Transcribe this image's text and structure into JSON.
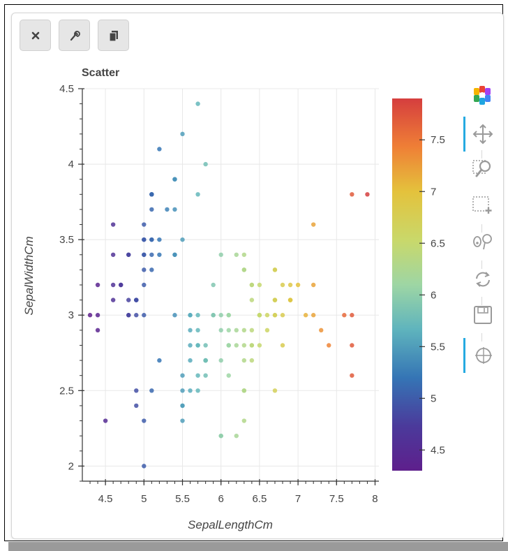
{
  "toolbar": {
    "buttons": [
      {
        "name": "close",
        "icon": "close-icon"
      },
      {
        "name": "settings",
        "icon": "wrench-icon"
      },
      {
        "name": "copy",
        "icon": "copy-icon"
      }
    ]
  },
  "side_tools": [
    {
      "name": "bokeh-logo",
      "icon": "bokeh-logo-icon"
    },
    {
      "name": "pan",
      "icon": "pan-icon",
      "active": true
    },
    {
      "name": "wheel-zoom",
      "icon": "wheel-zoom-icon"
    },
    {
      "name": "box-zoom",
      "icon": "box-zoom-icon"
    },
    {
      "name": "lasso",
      "icon": "lasso-icon"
    },
    {
      "name": "reset",
      "icon": "reset-icon"
    },
    {
      "name": "save",
      "icon": "save-icon"
    },
    {
      "name": "hover",
      "icon": "crosshair-icon",
      "active": true
    }
  ],
  "chart_data": {
    "type": "scatter",
    "title": "Scatter",
    "xlabel": "SepalLengthCm",
    "ylabel": "SepalWidthCm",
    "xlim": [
      4.2,
      8.05
    ],
    "ylim": [
      1.9,
      4.5
    ],
    "xticks": [
      4.5,
      5,
      5.5,
      6,
      6.5,
      7,
      7.5,
      8
    ],
    "yticks": [
      2,
      2.5,
      3,
      3.5,
      4,
      4.5
    ],
    "grid": true,
    "colormap": "Spectral",
    "colorbar": {
      "range": [
        4.3,
        7.9
      ],
      "ticks": [
        4.5,
        5,
        5.5,
        6,
        6.5,
        7,
        7.5
      ]
    },
    "color_by": "x",
    "points": [
      [
        5.1,
        3.5
      ],
      [
        4.9,
        3.0
      ],
      [
        4.7,
        3.2
      ],
      [
        4.6,
        3.1
      ],
      [
        5.0,
        3.6
      ],
      [
        5.4,
        3.9
      ],
      [
        4.6,
        3.4
      ],
      [
        5.0,
        3.4
      ],
      [
        4.4,
        2.9
      ],
      [
        4.9,
        3.1
      ],
      [
        5.4,
        3.7
      ],
      [
        4.8,
        3.4
      ],
      [
        4.8,
        3.0
      ],
      [
        4.3,
        3.0
      ],
      [
        5.8,
        4.0
      ],
      [
        5.7,
        4.4
      ],
      [
        5.4,
        3.9
      ],
      [
        5.1,
        3.5
      ],
      [
        5.7,
        3.8
      ],
      [
        5.1,
        3.8
      ],
      [
        5.4,
        3.4
      ],
      [
        5.1,
        3.7
      ],
      [
        4.6,
        3.6
      ],
      [
        5.1,
        3.3
      ],
      [
        4.8,
        3.4
      ],
      [
        5.0,
        3.0
      ],
      [
        5.0,
        3.4
      ],
      [
        5.2,
        3.5
      ],
      [
        5.2,
        3.4
      ],
      [
        4.7,
        3.2
      ],
      [
        4.8,
        3.1
      ],
      [
        5.4,
        3.4
      ],
      [
        5.2,
        4.1
      ],
      [
        5.5,
        4.2
      ],
      [
        4.9,
        3.1
      ],
      [
        5.0,
        3.2
      ],
      [
        5.5,
        3.5
      ],
      [
        4.9,
        3.1
      ],
      [
        4.4,
        3.0
      ],
      [
        5.1,
        3.4
      ],
      [
        5.0,
        3.5
      ],
      [
        4.5,
        2.3
      ],
      [
        4.4,
        3.2
      ],
      [
        5.0,
        3.5
      ],
      [
        5.1,
        3.8
      ],
      [
        4.8,
        3.0
      ],
      [
        5.1,
        3.8
      ],
      [
        4.6,
        3.2
      ],
      [
        5.3,
        3.7
      ],
      [
        5.0,
        3.3
      ],
      [
        7.0,
        3.2
      ],
      [
        6.4,
        3.2
      ],
      [
        6.9,
        3.1
      ],
      [
        5.5,
        2.3
      ],
      [
        6.5,
        2.8
      ],
      [
        5.7,
        2.8
      ],
      [
        6.3,
        3.3
      ],
      [
        4.9,
        2.4
      ],
      [
        6.6,
        2.9
      ],
      [
        5.2,
        2.7
      ],
      [
        5.0,
        2.0
      ],
      [
        5.9,
        3.0
      ],
      [
        6.0,
        2.2
      ],
      [
        6.1,
        2.9
      ],
      [
        5.6,
        2.9
      ],
      [
        6.7,
        3.1
      ],
      [
        5.6,
        3.0
      ],
      [
        5.8,
        2.7
      ],
      [
        6.2,
        2.2
      ],
      [
        5.6,
        2.5
      ],
      [
        5.9,
        3.2
      ],
      [
        6.1,
        2.8
      ],
      [
        6.3,
        2.5
      ],
      [
        6.1,
        2.8
      ],
      [
        6.4,
        2.9
      ],
      [
        6.6,
        3.0
      ],
      [
        6.8,
        2.8
      ],
      [
        6.7,
        3.0
      ],
      [
        6.0,
        2.9
      ],
      [
        5.7,
        2.6
      ],
      [
        5.5,
        2.4
      ],
      [
        5.5,
        2.4
      ],
      [
        5.8,
        2.7
      ],
      [
        6.0,
        2.7
      ],
      [
        5.4,
        3.0
      ],
      [
        6.0,
        3.4
      ],
      [
        6.7,
        3.1
      ],
      [
        6.3,
        2.3
      ],
      [
        5.6,
        3.0
      ],
      [
        5.5,
        2.5
      ],
      [
        5.5,
        2.6
      ],
      [
        6.1,
        3.0
      ],
      [
        5.8,
        2.6
      ],
      [
        5.0,
        2.3
      ],
      [
        5.6,
        2.7
      ],
      [
        5.7,
        3.0
      ],
      [
        5.7,
        2.9
      ],
      [
        6.2,
        2.9
      ],
      [
        5.1,
        2.5
      ],
      [
        5.7,
        2.8
      ],
      [
        6.3,
        3.3
      ],
      [
        5.8,
        2.7
      ],
      [
        7.1,
        3.0
      ],
      [
        6.3,
        2.9
      ],
      [
        6.5,
        3.0
      ],
      [
        7.6,
        3.0
      ],
      [
        4.9,
        2.5
      ],
      [
        7.3,
        2.9
      ],
      [
        6.7,
        2.5
      ],
      [
        7.2,
        3.6
      ],
      [
        6.5,
        3.2
      ],
      [
        6.4,
        2.7
      ],
      [
        6.8,
        3.0
      ],
      [
        5.7,
        2.5
      ],
      [
        5.8,
        2.8
      ],
      [
        6.4,
        3.2
      ],
      [
        6.5,
        3.0
      ],
      [
        7.7,
        3.8
      ],
      [
        7.7,
        2.6
      ],
      [
        6.0,
        2.2
      ],
      [
        6.9,
        3.2
      ],
      [
        5.6,
        2.8
      ],
      [
        7.7,
        2.8
      ],
      [
        6.3,
        2.7
      ],
      [
        6.7,
        3.3
      ],
      [
        7.2,
        3.2
      ],
      [
        6.2,
        2.8
      ],
      [
        6.1,
        3.0
      ],
      [
        6.4,
        2.8
      ],
      [
        7.2,
        3.0
      ],
      [
        7.4,
        2.8
      ],
      [
        7.9,
        3.8
      ],
      [
        6.4,
        2.8
      ],
      [
        6.3,
        2.8
      ],
      [
        6.1,
        2.6
      ],
      [
        7.7,
        3.0
      ],
      [
        6.3,
        3.4
      ],
      [
        6.4,
        3.1
      ],
      [
        6.0,
        3.0
      ],
      [
        6.9,
        3.1
      ],
      [
        6.7,
        3.1
      ],
      [
        6.9,
        3.1
      ],
      [
        5.8,
        2.7
      ],
      [
        6.8,
        3.2
      ],
      [
        6.7,
        3.3
      ],
      [
        6.7,
        3.0
      ],
      [
        6.3,
        2.5
      ],
      [
        6.5,
        3.0
      ],
      [
        6.2,
        3.4
      ],
      [
        5.9,
        3.0
      ]
    ]
  }
}
